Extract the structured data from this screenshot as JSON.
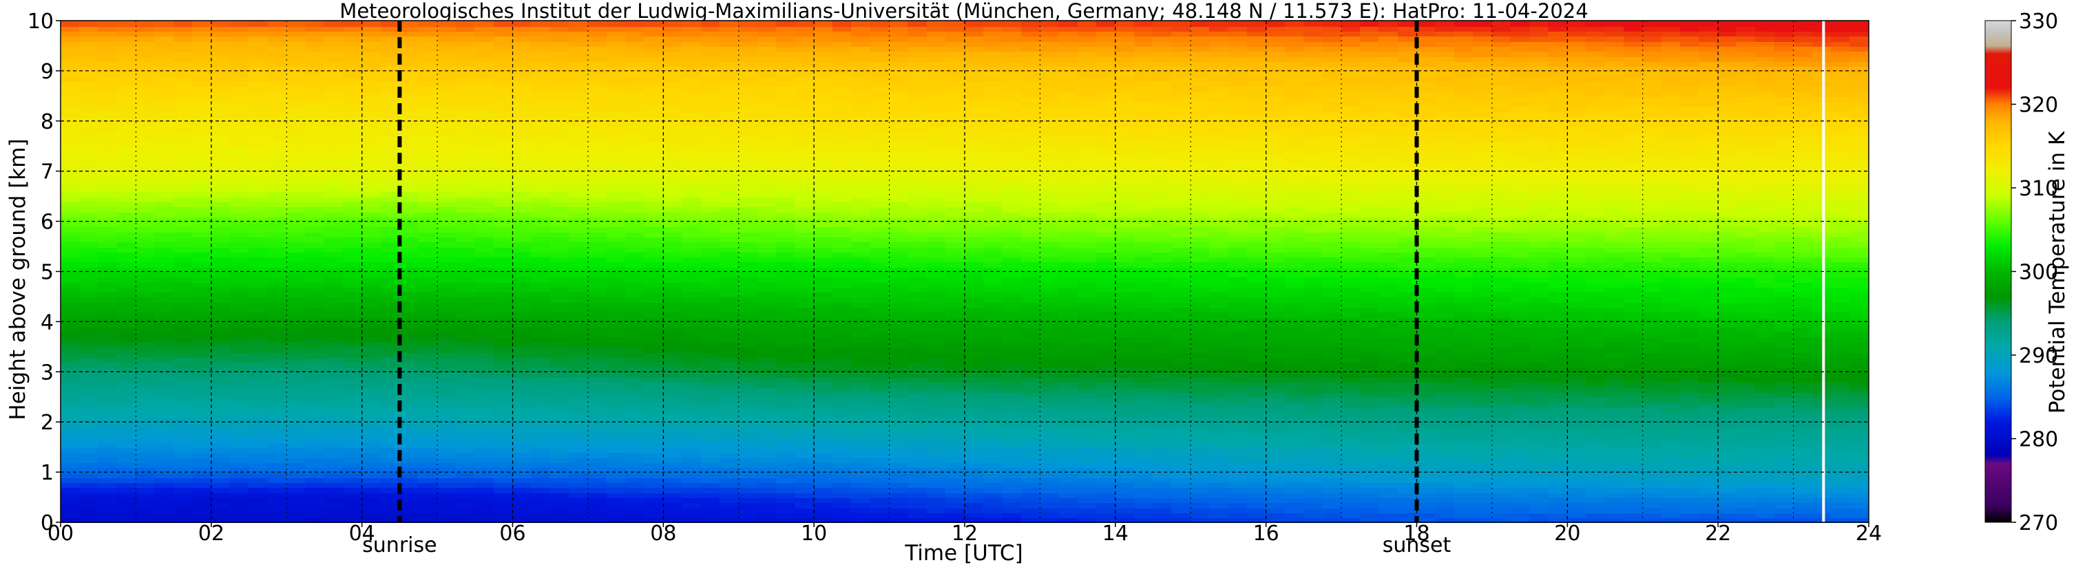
{
  "chart_data": {
    "type": "heatmap",
    "title": "Meteorologisches Institut der Ludwig-Maximilians-Universität (München, Germany; 48.148 N / 11.573 E):    HatPro: 11-04-2024",
    "xlabel": "Time [UTC]",
    "ylabel": "Height above ground [km]",
    "colorbar_label": "Potential Temperature in K",
    "xlim": [
      0,
      24
    ],
    "ylim": [
      0,
      10
    ],
    "clim": [
      270,
      330
    ],
    "x_ticks": [
      {
        "value": 0,
        "label": "00"
      },
      {
        "value": 2,
        "label": "02"
      },
      {
        "value": 4,
        "label": "04"
      },
      {
        "value": 6,
        "label": "06"
      },
      {
        "value": 8,
        "label": "08"
      },
      {
        "value": 10,
        "label": "10"
      },
      {
        "value": 12,
        "label": "12"
      },
      {
        "value": 14,
        "label": "14"
      },
      {
        "value": 16,
        "label": "16"
      },
      {
        "value": 18,
        "label": "18"
      },
      {
        "value": 20,
        "label": "20"
      },
      {
        "value": 22,
        "label": "22"
      },
      {
        "value": 24,
        "label": "24"
      }
    ],
    "y_ticks": [
      0,
      1,
      2,
      3,
      4,
      5,
      6,
      7,
      8,
      9,
      10
    ],
    "colorbar_ticks": [
      270,
      280,
      290,
      300,
      310,
      320,
      330
    ],
    "grid": true,
    "colormap": [
      {
        "value": 270,
        "color": "#000000"
      },
      {
        "value": 272,
        "color": "#3b0060"
      },
      {
        "value": 277,
        "color": "#6a0a82"
      },
      {
        "value": 278,
        "color": "#0000b8"
      },
      {
        "value": 282,
        "color": "#0018e0"
      },
      {
        "value": 285,
        "color": "#0068e8"
      },
      {
        "value": 288,
        "color": "#0098d8"
      },
      {
        "value": 291,
        "color": "#00a8a8"
      },
      {
        "value": 294,
        "color": "#00a078"
      },
      {
        "value": 297,
        "color": "#009600"
      },
      {
        "value": 300,
        "color": "#00b800"
      },
      {
        "value": 303,
        "color": "#00ec00"
      },
      {
        "value": 306,
        "color": "#60ff00"
      },
      {
        "value": 309,
        "color": "#c8ff00"
      },
      {
        "value": 312,
        "color": "#f0f000"
      },
      {
        "value": 315,
        "color": "#ffd800"
      },
      {
        "value": 318,
        "color": "#ffb400"
      },
      {
        "value": 320,
        "color": "#ff8000"
      },
      {
        "value": 322,
        "color": "#e81010"
      },
      {
        "value": 326,
        "color": "#e01808"
      },
      {
        "value": 327,
        "color": "#c0b090"
      },
      {
        "value": 329,
        "color": "#c8c8c8"
      },
      {
        "value": 330,
        "color": "#d8d8d8"
      }
    ],
    "profile_height_km": [
      0,
      0.5,
      1,
      2,
      3,
      4,
      5,
      6,
      7,
      8,
      9,
      9.6,
      10
    ],
    "profiles": [
      {
        "time": 0,
        "theta": [
          280,
          281,
          285,
          290,
          294,
          298,
          302,
          306,
          311,
          313,
          316,
          318,
          321
        ]
      },
      {
        "time": 4.5,
        "theta": [
          280,
          281,
          285,
          290,
          294,
          298,
          302,
          305.5,
          311,
          313,
          316,
          318,
          321
        ]
      },
      {
        "time": 10,
        "theta": [
          281,
          283,
          286,
          291,
          296,
          299,
          302.5,
          307,
          311,
          314,
          316,
          319,
          321
        ]
      },
      {
        "time": 18,
        "theta": [
          284,
          286,
          289,
          293,
          297,
          300,
          303.5,
          308,
          312,
          315,
          317,
          320,
          322
        ]
      },
      {
        "time": 24,
        "theta": [
          284,
          287,
          290,
          293,
          297.5,
          301,
          304,
          308.5,
          312,
          315,
          318,
          321,
          323
        ]
      }
    ],
    "missing_data_time": 23.4,
    "events": [
      {
        "time": 4.5,
        "label": "sunrise"
      },
      {
        "time": 18.0,
        "label": "sunset"
      }
    ]
  }
}
